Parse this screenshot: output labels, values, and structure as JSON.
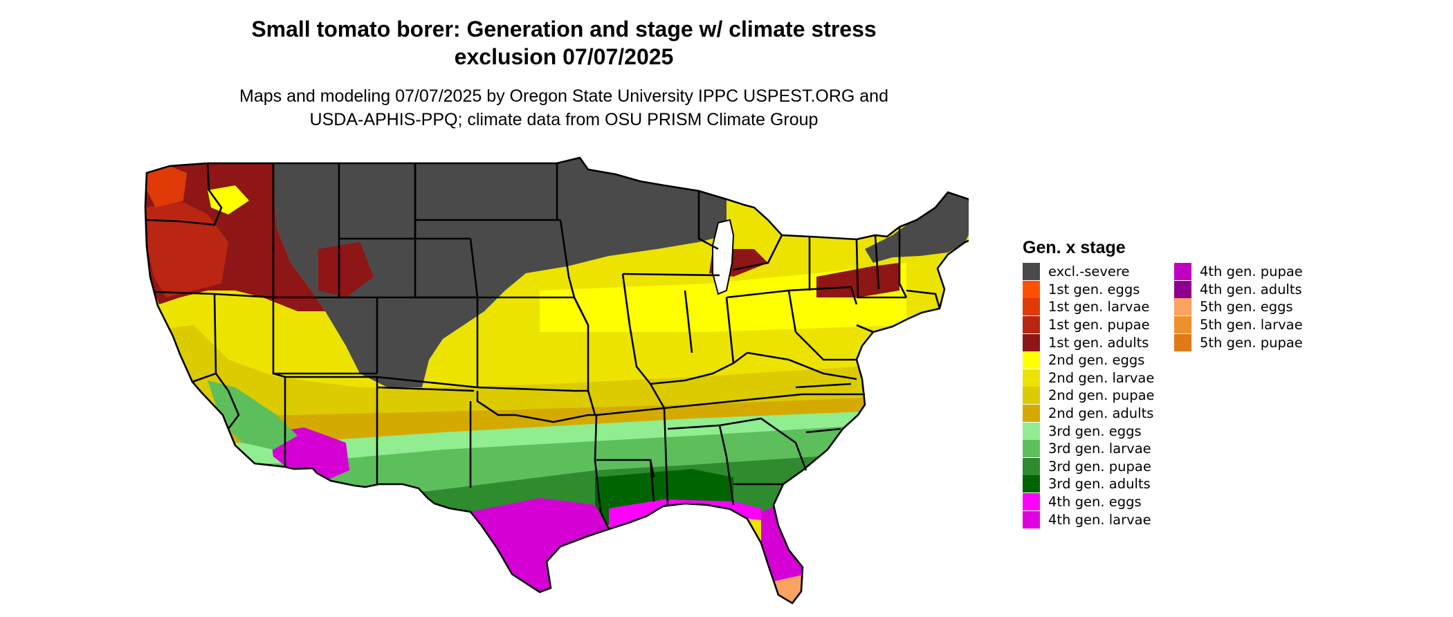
{
  "title": {
    "line1": "Small tomato borer: Generation and stage w/ climate stress",
    "line2": "exclusion 07/07/2025"
  },
  "subtitle": {
    "line1": "Maps and modeling 07/07/2025 by Oregon State University IPPC USPEST.ORG and",
    "line2": "USDA-APHIS-PPQ; climate data from OSU PRISM Climate Group"
  },
  "legend": {
    "title": "Gen. x stage",
    "column1": [
      {
        "label": "excl.-severe",
        "color": "#4a4a4a"
      },
      {
        "label": "1st gen. eggs",
        "color": "#ff5000"
      },
      {
        "label": "1st gen. larvae",
        "color": "#e03a08"
      },
      {
        "label": "1st gen. pupae",
        "color": "#bb2612"
      },
      {
        "label": "1st gen. adults",
        "color": "#8e1616"
      },
      {
        "label": "2nd gen. eggs",
        "color": "#ffff00"
      },
      {
        "label": "2nd gen. larvae",
        "color": "#ece400"
      },
      {
        "label": "2nd gen. pupae",
        "color": "#dccb00"
      },
      {
        "label": "2nd gen. adults",
        "color": "#d4aa00"
      },
      {
        "label": "3rd gen. eggs",
        "color": "#90ee90"
      },
      {
        "label": "3rd gen. larvae",
        "color": "#5cbf5c"
      },
      {
        "label": "3rd gen. pupae",
        "color": "#2e8b2e"
      },
      {
        "label": "3rd gen. adults",
        "color": "#006400"
      },
      {
        "label": "4th gen. eggs",
        "color": "#ff00ff"
      },
      {
        "label": "4th gen. larvae",
        "color": "#e000e0"
      }
    ],
    "column2": [
      {
        "label": "4th gen. pupae",
        "color": "#c000c0"
      },
      {
        "label": "4th gen. adults",
        "color": "#8e008e"
      },
      {
        "label": "5th gen. eggs",
        "color": "#f8a460"
      },
      {
        "label": "5th gen. larvae",
        "color": "#f0902c"
      },
      {
        "label": "5th gen. pupae",
        "color": "#df7a18"
      }
    ]
  },
  "map": {
    "background": "#ffffff",
    "border_color": "#000000",
    "dominant_stage_by_region": {
      "northern_plains_and_upper_midwest": "excl.-severe",
      "pacific_northwest_and_great_basin": "1st gen. adults",
      "midwest_and_mid_atlantic": "2nd gen. larvae",
      "southern_plains_and_southeast": "3rd gen. larvae",
      "gulf_coast_and_florida": "4th gen. larvae",
      "south_florida_tip": "5th gen. eggs"
    }
  }
}
